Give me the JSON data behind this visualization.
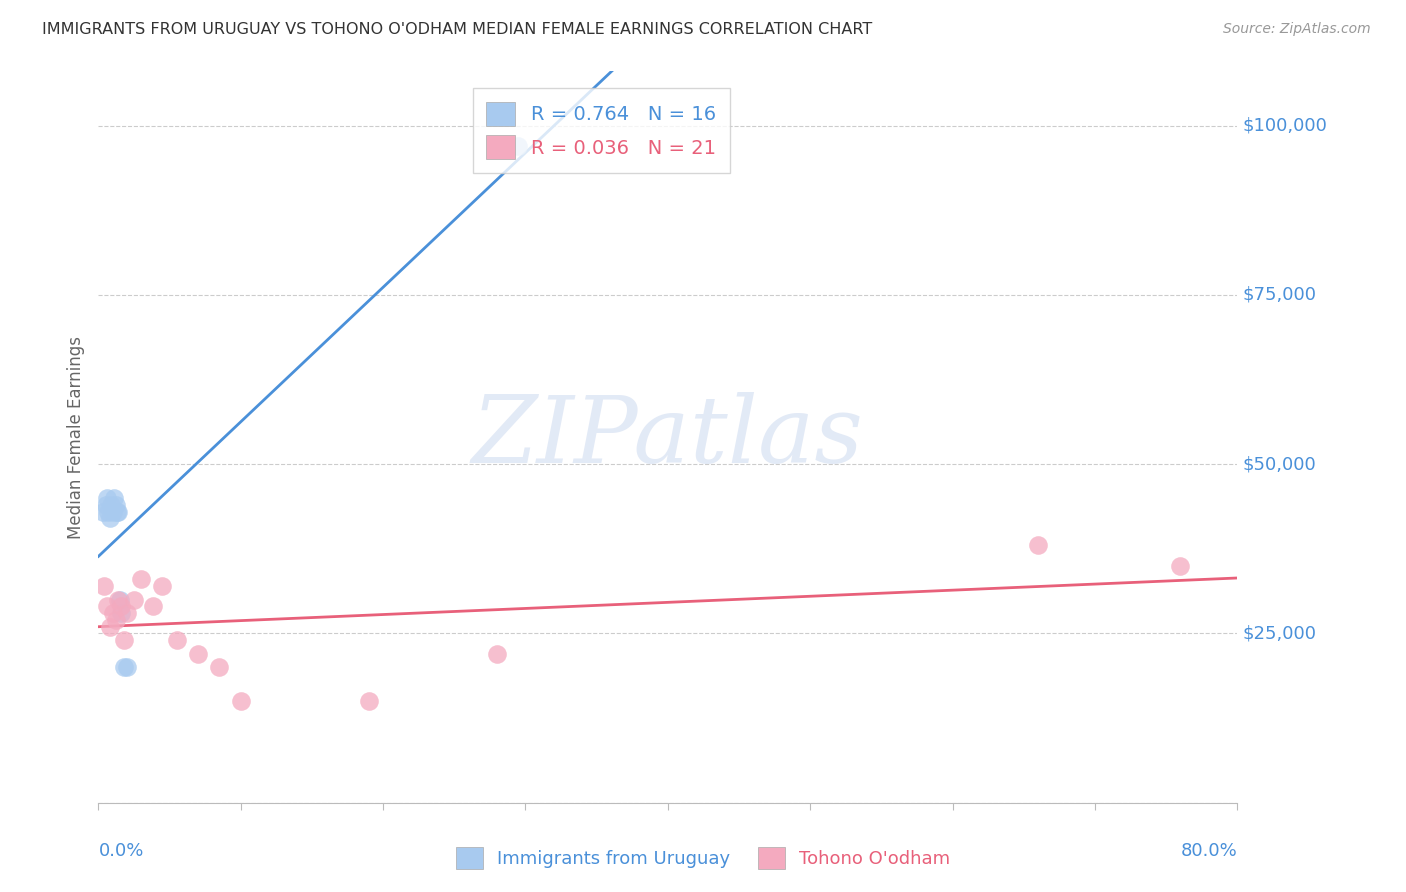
{
  "title": "IMMIGRANTS FROM URUGUAY VS TOHONO O'ODHAM MEDIAN FEMALE EARNINGS CORRELATION CHART",
  "source": "Source: ZipAtlas.com",
  "ylabel": "Median Female Earnings",
  "legend_blue_R": "0.764",
  "legend_blue_N": "16",
  "legend_pink_R": "0.036",
  "legend_pink_N": "21",
  "legend_label_blue": "Immigrants from Uruguay",
  "legend_label_pink": "Tohono O'odham",
  "blue_color": "#A8CAEF",
  "pink_color": "#F4AABF",
  "blue_line_color": "#4A90D9",
  "pink_line_color": "#E8607A",
  "blue_scatter_x": [
    0.003,
    0.005,
    0.006,
    0.007,
    0.008,
    0.009,
    0.01,
    0.011,
    0.012,
    0.013,
    0.014,
    0.015,
    0.016,
    0.018,
    0.02,
    0.295
  ],
  "blue_scatter_y": [
    43000,
    44000,
    45000,
    43000,
    42000,
    44000,
    43000,
    45000,
    44000,
    43000,
    43000,
    30000,
    28000,
    20000,
    20000,
    97000
  ],
  "pink_scatter_x": [
    0.004,
    0.006,
    0.008,
    0.01,
    0.012,
    0.014,
    0.016,
    0.018,
    0.02,
    0.025,
    0.03,
    0.038,
    0.045,
    0.055,
    0.07,
    0.085,
    0.1,
    0.19,
    0.28,
    0.66,
    0.76
  ],
  "pink_scatter_y": [
    32000,
    29000,
    26000,
    28000,
    27000,
    30000,
    29000,
    24000,
    28000,
    30000,
    33000,
    29000,
    32000,
    24000,
    22000,
    20000,
    15000,
    15000,
    22000,
    38000,
    35000
  ],
  "xmin": 0.0,
  "xmax": 0.8,
  "ymin": 0,
  "ymax": 108000,
  "yticks": [
    0,
    25000,
    50000,
    75000,
    100000
  ],
  "ytick_right_labels": {
    "25000": "$25,000",
    "50000": "$50,000",
    "75000": "$75,000",
    "100000": "$100,000"
  },
  "background_color": "#FFFFFF",
  "grid_color": "#CCCCCC",
  "title_color": "#333333",
  "yaxis_label_color": "#666666",
  "axis_label_color": "#4A90D9",
  "watermark_text": "ZIPatlas",
  "watermark_color": "#D0DCF0"
}
